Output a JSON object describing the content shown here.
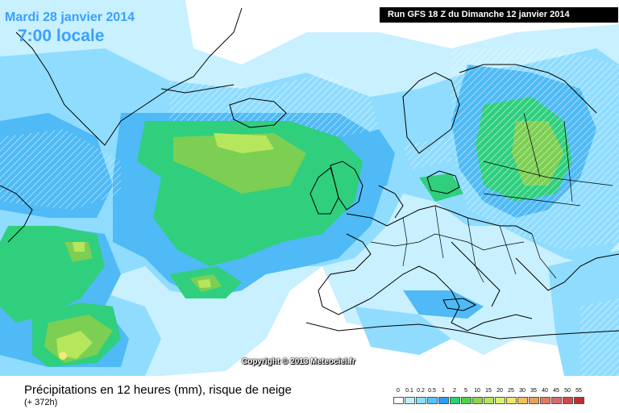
{
  "header": {
    "date": "Mardi 28 janvier 2014",
    "time": "7:00 locale",
    "run": "Run GFS 18 Z du Dimanche 12 janvier 2014"
  },
  "copyright": "Copyright © 2013 Meteociel.fr",
  "footer": {
    "title": "Précipitations en 12 heures (mm), risque de neige",
    "subtitle": "(+ 372h)"
  },
  "legend": {
    "labels": [
      "0",
      "0.1",
      "0.2",
      "0.5",
      "1",
      "2",
      "5",
      "10",
      "15",
      "20",
      "25",
      "30",
      "35",
      "40",
      "45",
      "50",
      "55"
    ],
    "colors": [
      "#ffffff",
      "#bfeeff",
      "#8cdcff",
      "#55c3ff",
      "#2a9bff",
      "#28d26e",
      "#4fd14a",
      "#8ed44a",
      "#b3e45a",
      "#dcf070",
      "#f2e56a",
      "#f0c060",
      "#e8a060",
      "#e07a60",
      "#d66a70",
      "#d04848",
      "#b83030"
    ]
  }
}
